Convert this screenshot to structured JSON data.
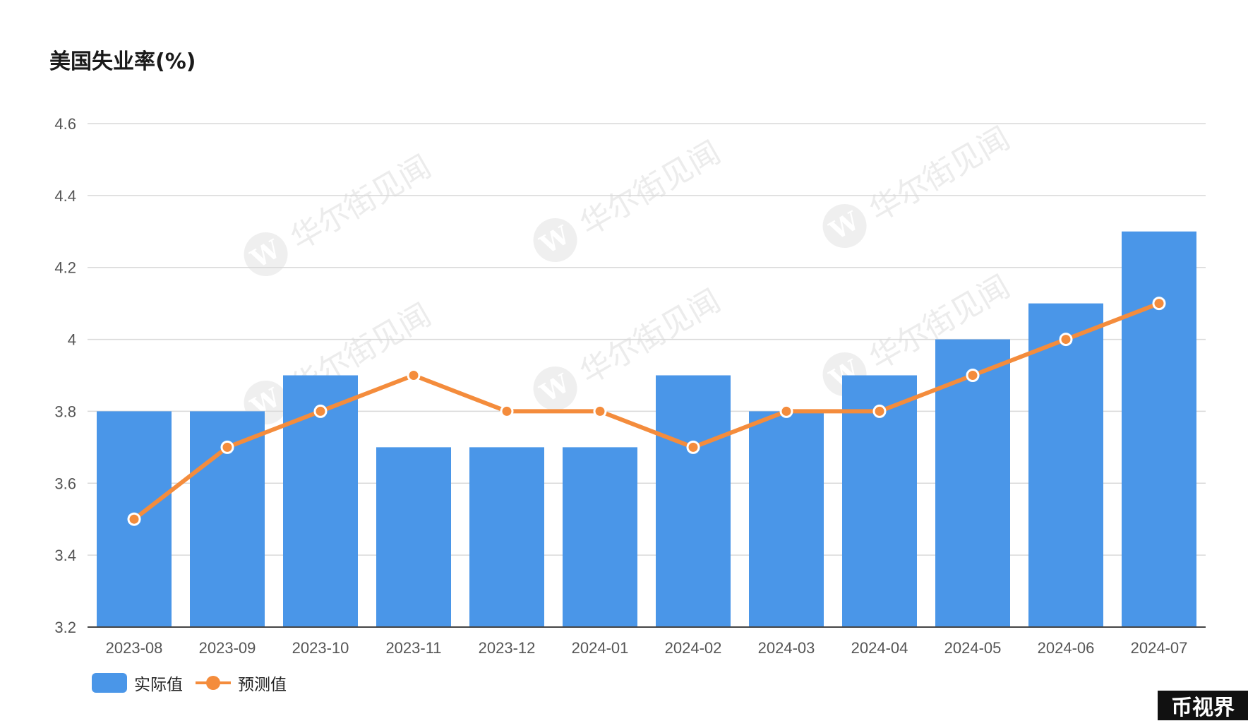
{
  "title": "美国失业率(%)",
  "legend": {
    "actual": "实际值",
    "forecast": "预测值"
  },
  "brand": "币视界",
  "watermark": {
    "text": "华尔街见闻",
    "logo": "W"
  },
  "colors": {
    "bar": "#4a96e8",
    "line": "#f48c3c",
    "grid": "#d9d9d9",
    "axis": "#444444"
  },
  "chart_data": {
    "type": "bar",
    "title": "美国失业率(%)",
    "categories": [
      "2023-08",
      "2023-09",
      "2023-10",
      "2023-11",
      "2023-12",
      "2024-01",
      "2024-02",
      "2024-03",
      "2024-04",
      "2024-05",
      "2024-06",
      "2024-07"
    ],
    "series": [
      {
        "name": "实际值",
        "type": "bar",
        "values": [
          3.8,
          3.8,
          3.9,
          3.7,
          3.7,
          3.7,
          3.9,
          3.8,
          3.9,
          4.0,
          4.1,
          4.3
        ]
      },
      {
        "name": "预测值",
        "type": "line",
        "values": [
          3.5,
          3.7,
          3.8,
          3.9,
          3.8,
          3.8,
          3.7,
          3.8,
          3.8,
          3.9,
          4.0,
          4.1
        ]
      }
    ],
    "yticks": [
      "3.2",
      "3.4",
      "3.6",
      "3.8",
      "4",
      "4.2",
      "4.4",
      "4.6"
    ],
    "ylim": [
      3.2,
      4.6
    ],
    "grid": true,
    "legend_position": "bottom-left"
  }
}
